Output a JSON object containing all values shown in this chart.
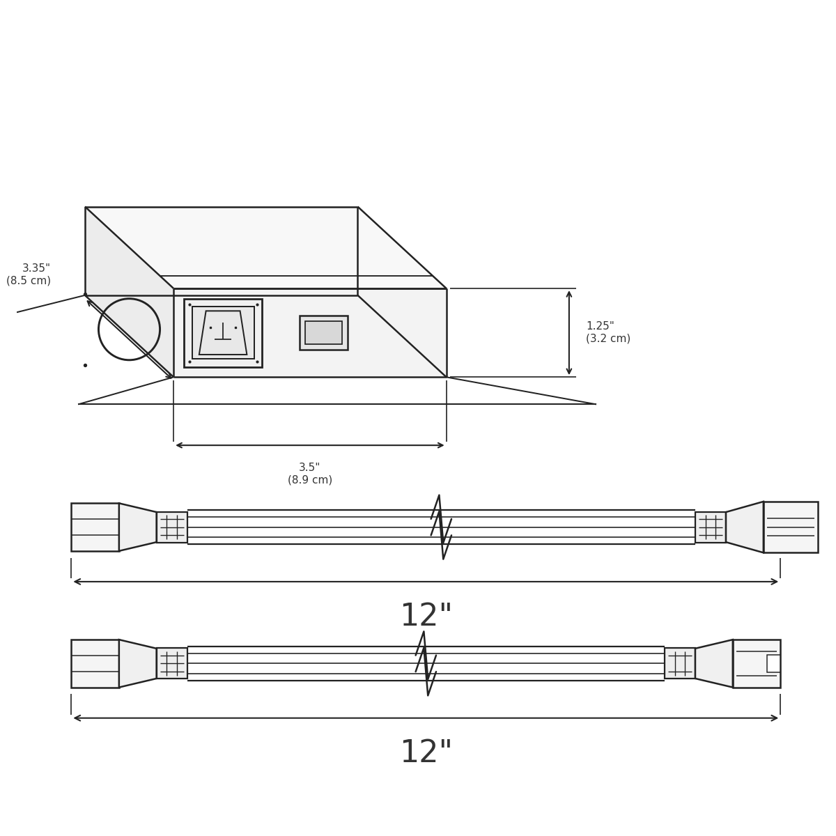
{
  "bg_color": "#ffffff",
  "line_color": "#222222",
  "line_width": 1.8,
  "text_color": "#333333",
  "dim_height_label": "1.25\"\n(3.2 cm)",
  "dim_depth_label": "3.35\"\n(8.5 cm)",
  "dim_width_label": "3.5\"\n(8.9 cm)",
  "cable1_label": "12\"",
  "cable2_label": "12\""
}
